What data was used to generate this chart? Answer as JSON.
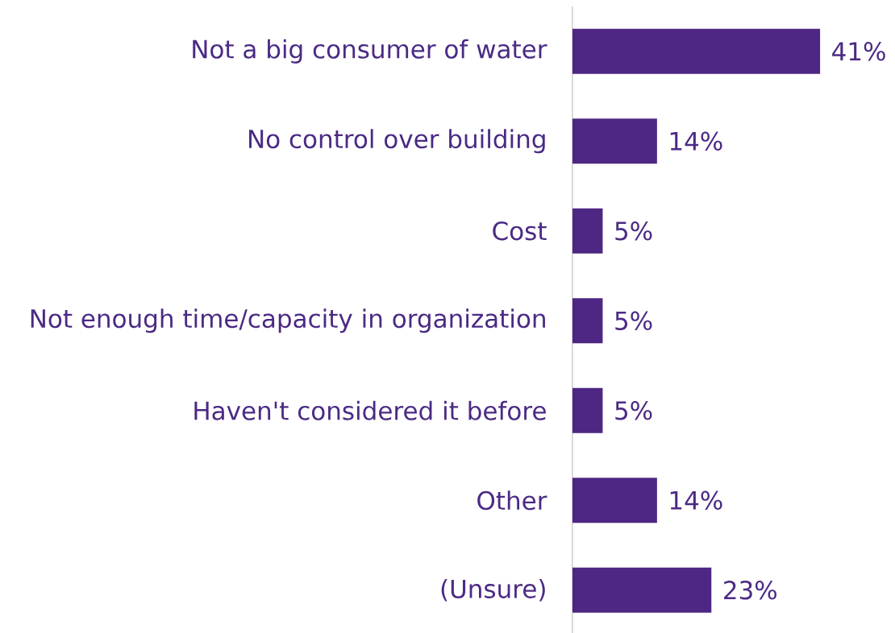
{
  "chart_data": {
    "type": "bar",
    "orientation": "horizontal",
    "categories": [
      "Not a big consumer of water",
      "No control over building",
      "Cost",
      "Not enough time/capacity in organization",
      "Haven't considered it before",
      "Other",
      "(Unsure)"
    ],
    "values": [
      41,
      14,
      5,
      5,
      5,
      14,
      23
    ],
    "value_labels": [
      "41%",
      "14%",
      "5%",
      "5%",
      "5%",
      "14%",
      "23%"
    ],
    "color": "#4e2683"
  }
}
